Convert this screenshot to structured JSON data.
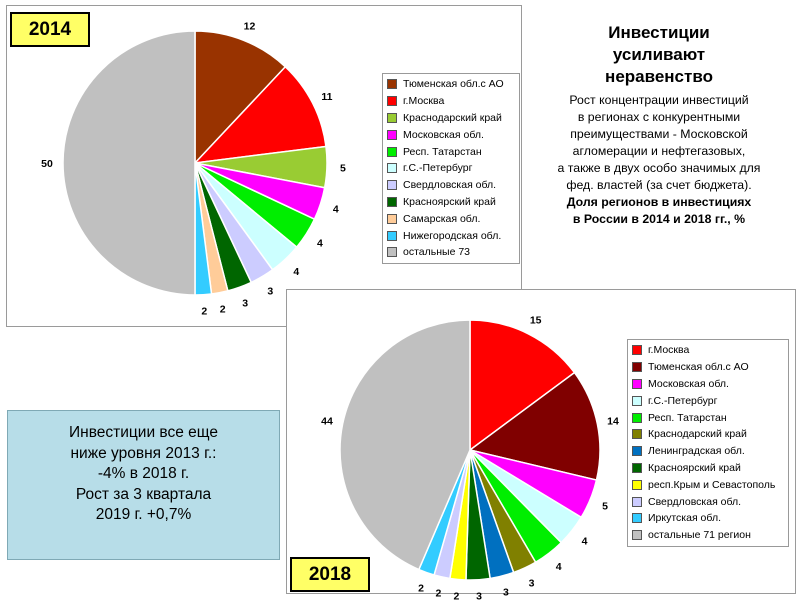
{
  "badges": {
    "y2014": "2014",
    "y2018": "2018"
  },
  "title": {
    "headline": [
      "Инвестиции",
      "усиливают",
      "неравенство"
    ],
    "body": [
      "Рост концентрации инвестиций",
      "в регионах с конкурентными",
      "преимуществами - Московской",
      "агломерации и нефтегазовых,",
      "а также в двух особо значимых для",
      "фед. властей (за счет бюджета)."
    ],
    "bold": [
      "Доля регионов в инвестициях",
      "в России в 2014 и 2018 гг., %"
    ]
  },
  "info_box": [
    "Инвестиции все еще",
    "ниже уровня 2013 г.:",
    "-4% в 2018 г.",
    "Рост за 3 квартала",
    "2019 г. +0,7%"
  ],
  "chart_data": [
    {
      "type": "pie",
      "badge": "2014",
      "categories": [
        "Тюменская обл.с АО",
        "г.Москва",
        "Краснодарский край",
        "Московская обл.",
        "Респ. Татарстан",
        "г.С.-Петербург",
        "Свердловская обл.",
        "Красноярский край",
        "Самарская обл.",
        "Нижегородская обл.",
        "остальные 73"
      ],
      "values": [
        12,
        11,
        5,
        4,
        4,
        4,
        3,
        3,
        2,
        2,
        50
      ],
      "colors": [
        "#993300",
        "#ff0000",
        "#99cc33",
        "#ff00ff",
        "#00ee00",
        "#ccffff",
        "#ccccff",
        "#006600",
        "#ffcc99",
        "#33ccff",
        "#c0c0c0"
      ],
      "legend_position": "right"
    },
    {
      "type": "pie",
      "badge": "2018",
      "categories": [
        "г.Москва",
        "Тюменская обл.с АО",
        "Московская обл.",
        "г.С.-Петербург",
        "Респ. Татарстан",
        "Краснодарский край",
        "Ленинградская обл.",
        "Красноярский край",
        "респ.Крым и Севастополь",
        "Свердловская обл.",
        "Иркутская обл.",
        "остальные 71 регион"
      ],
      "values": [
        15,
        14,
        5,
        4,
        4,
        3,
        3,
        3,
        2,
        2,
        2,
        44
      ],
      "colors": [
        "#ff0000",
        "#800000",
        "#ff00ff",
        "#ccffff",
        "#00ee00",
        "#808000",
        "#0070c0",
        "#006600",
        "#ffff00",
        "#ccccff",
        "#33ccff",
        "#c0c0c0"
      ],
      "legend_position": "right"
    }
  ]
}
